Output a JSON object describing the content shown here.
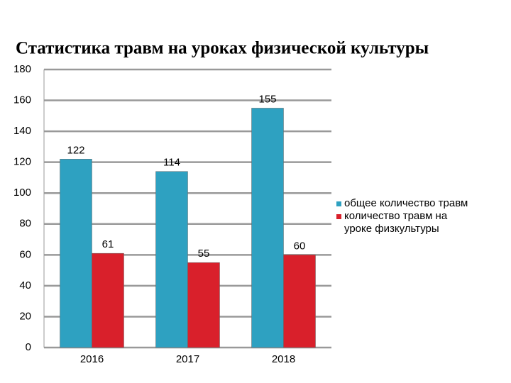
{
  "chart_data": {
    "type": "bar",
    "title": "Статистика травм на уроках физической культуры",
    "categories": [
      "2016",
      "2017",
      "2018"
    ],
    "series": [
      {
        "name": "общее количество травм",
        "color": "#2ea1c1",
        "values": [
          122,
          114,
          155
        ]
      },
      {
        "name": "количество травм на уроке физкультуры",
        "color": "#d9202b",
        "values": [
          61,
          55,
          60
        ]
      }
    ],
    "ylim": [
      0,
      180
    ],
    "yticks": [
      0,
      20,
      40,
      60,
      80,
      100,
      120,
      140,
      160,
      180
    ],
    "grid": true,
    "legend": "right"
  }
}
